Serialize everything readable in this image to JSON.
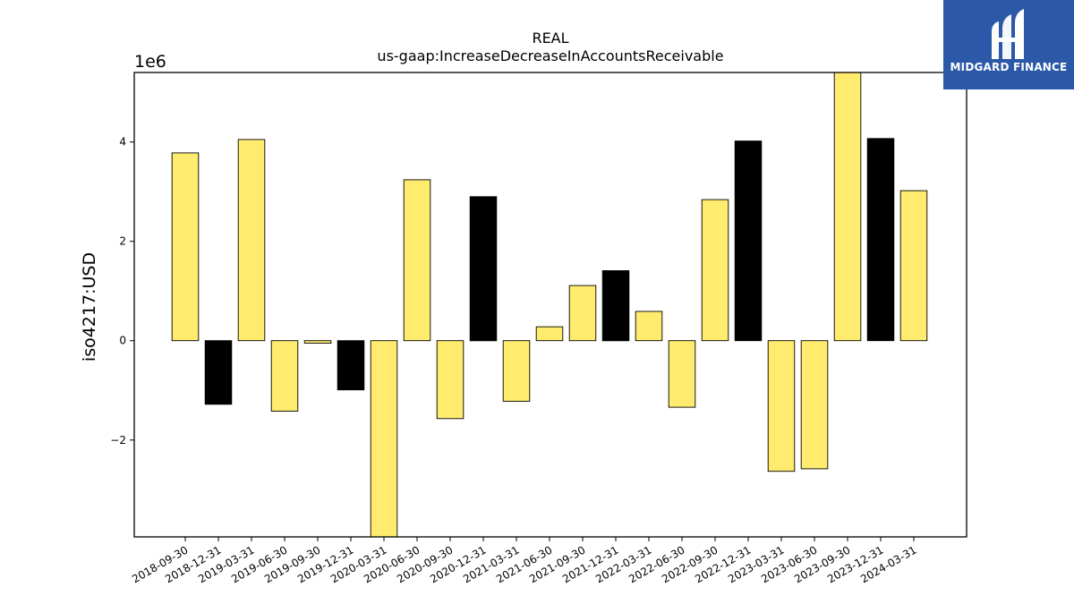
{
  "chart_data": {
    "type": "bar",
    "title": "REAL",
    "subtitle": "us-gaap:IncreaseDecreaseInAccountsReceivable",
    "ylabel": "iso4217:USD",
    "xlabel": "",
    "scale_label": "1e6",
    "scale": 1000000,
    "ylim": [
      -3.95,
      5.4
    ],
    "yticks": [
      -2,
      0,
      2,
      4
    ],
    "ytick_labels": [
      "−2",
      "0",
      "2",
      "4"
    ],
    "grid": false,
    "categories": [
      "2018-09-30",
      "2018-12-31",
      "2019-03-31",
      "2019-06-30",
      "2019-09-30",
      "2019-12-31",
      "2020-03-31",
      "2020-06-30",
      "2020-09-30",
      "2020-12-31",
      "2021-03-31",
      "2021-06-30",
      "2021-09-30",
      "2021-12-31",
      "2022-03-31",
      "2022-06-30",
      "2022-09-30",
      "2022-12-31",
      "2023-03-31",
      "2023-06-30",
      "2023-09-30",
      "2023-12-31",
      "2024-03-31"
    ],
    "values": [
      3.78,
      -1.28,
      4.05,
      -1.42,
      -0.05,
      -0.99,
      -3.95,
      3.24,
      -1.57,
      2.9,
      -1.22,
      0.28,
      1.11,
      1.41,
      0.59,
      -1.34,
      2.84,
      4.02,
      -2.63,
      -2.58,
      5.4,
      4.07,
      3.02
    ],
    "bar_colors": [
      "#ffec6e",
      "#000000",
      "#ffec6e",
      "#ffec6e",
      "#ffec6e",
      "#000000",
      "#ffec6e",
      "#ffec6e",
      "#ffec6e",
      "#000000",
      "#ffec6e",
      "#ffec6e",
      "#ffec6e",
      "#000000",
      "#ffec6e",
      "#ffec6e",
      "#ffec6e",
      "#000000",
      "#ffec6e",
      "#ffec6e",
      "#ffec6e",
      "#000000",
      "#ffec6e"
    ]
  },
  "logo": {
    "text": "MIDGARD FINANCE",
    "color": "#2b59a8"
  }
}
